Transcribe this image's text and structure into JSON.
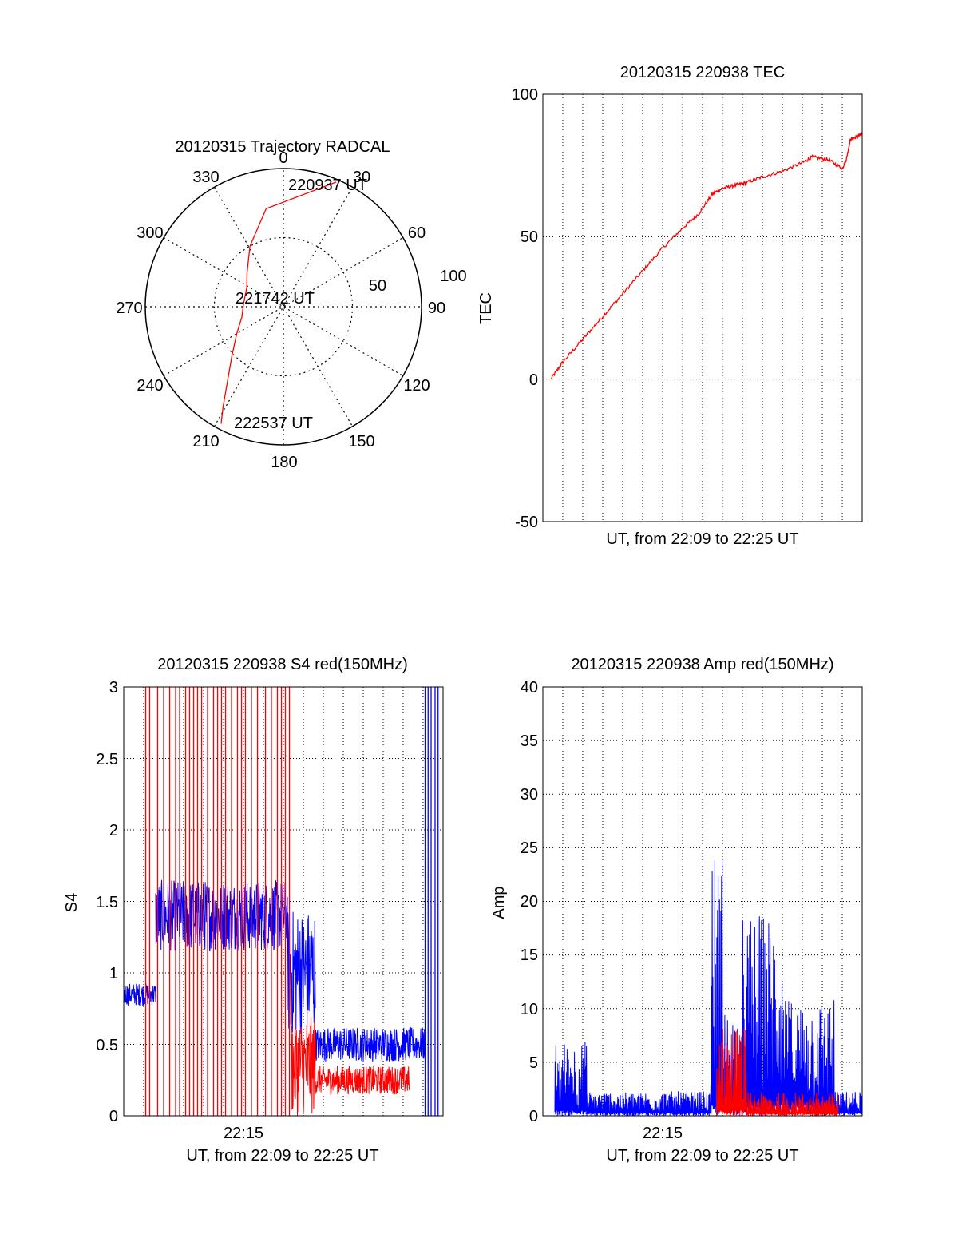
{
  "chart_data": [
    {
      "type": "polar",
      "title": "20120315 Trajectory RADCAL",
      "angle_labels": [
        "0",
        "30",
        "60",
        "90",
        "120",
        "150",
        "180",
        "210",
        "240",
        "270",
        "300",
        "330"
      ],
      "radius_labels": [
        "50",
        "100"
      ],
      "rlim": [
        0,
        100
      ],
      "trajectory": {
        "color": "#ff0000",
        "points": [
          [
            23,
            98
          ],
          [
            -10,
            72
          ],
          [
            -29,
            50
          ],
          [
            -47,
            36
          ],
          [
            -62,
            30
          ],
          [
            -87,
            29
          ],
          [
            -104,
            31
          ],
          [
            -120,
            39
          ],
          [
            -134,
            52
          ],
          [
            -149,
            85
          ],
          [
            -152,
            96
          ]
        ]
      },
      "annotations": [
        "220937 UT",
        "221742 UT",
        "222537 UT"
      ]
    },
    {
      "type": "line",
      "title": "20120315 220938 TEC",
      "xlabel": "UT, from 22:09 to 22:25 UT",
      "ylabel": "TEC",
      "ylim": [
        -50,
        100
      ],
      "yticks": [
        "100",
        "50",
        "0",
        "-50"
      ],
      "x_range_min": [
        0,
        16
      ],
      "grid": true,
      "series": [
        {
          "name": "TEC",
          "color": "#ff0000",
          "points": [
            [
              0.4,
              0
            ],
            [
              1.0,
              6
            ],
            [
              2.0,
              14
            ],
            [
              3.0,
              22
            ],
            [
              4.0,
              30
            ],
            [
              5.0,
              38
            ],
            [
              6.0,
              46
            ],
            [
              7.0,
              53
            ],
            [
              7.8,
              58
            ],
            [
              8.5,
              65
            ],
            [
              9.0,
              67
            ],
            [
              9.6,
              68
            ],
            [
              10.2,
              69
            ],
            [
              11.0,
              71
            ],
            [
              12.0,
              73
            ],
            [
              13.0,
              76
            ],
            [
              13.5,
              78
            ],
            [
              14.3,
              77
            ],
            [
              15.0,
              74
            ],
            [
              15.2,
              77
            ],
            [
              15.4,
              84
            ],
            [
              15.7,
              85
            ],
            [
              16.0,
              86
            ]
          ]
        }
      ]
    },
    {
      "type": "line",
      "title": "20120315 220938 S4 red(150MHz)",
      "xlabel": "UT, from 22:09 to 22:25 UT",
      "ylabel": "S4",
      "ylim": [
        0,
        3
      ],
      "yticks": [
        "3",
        "2.5",
        "2",
        "1.5",
        "1",
        "0.5",
        "0"
      ],
      "xtick_labels": [
        "22:15"
      ],
      "x_range_min": [
        0,
        16
      ],
      "grid": true,
      "series": [
        {
          "name": "S4 blue",
          "color": "#0000ff",
          "segments": [
            {
              "range": [
                0.0,
                1.6
              ],
              "base": 0.85,
              "noise": 0.08
            },
            {
              "range": [
                1.6,
                8.2
              ],
              "base": 1.4,
              "noise": 0.25
            },
            {
              "range": [
                8.2,
                9.6
              ],
              "base": 1.0,
              "noise": 0.45
            },
            {
              "range": [
                9.6,
                14.3
              ],
              "base": 0.5,
              "noise": 0.12
            },
            {
              "range": [
                14.3,
                15.1
              ],
              "base": 0.5,
              "noise": 0.12
            }
          ],
          "spikes": [
            [
              15.1,
              3
            ],
            [
              15.25,
              3
            ],
            [
              15.4,
              3
            ],
            [
              15.6,
              3
            ],
            [
              15.75,
              3
            ]
          ]
        },
        {
          "name": "S4 red",
          "color": "#ff0000",
          "segments": [
            {
              "range": [
                8.4,
                9.6
              ],
              "base": 0.35,
              "noise": 0.35
            },
            {
              "range": [
                9.6,
                14.3
              ],
              "base": 0.25,
              "noise": 0.1
            }
          ],
          "spikes": [
            [
              1.1,
              3
            ],
            [
              1.3,
              3
            ],
            [
              1.7,
              3
            ],
            [
              2.0,
              3
            ],
            [
              2.3,
              3
            ],
            [
              2.6,
              3
            ],
            [
              2.8,
              3
            ],
            [
              3.1,
              3
            ],
            [
              3.3,
              3
            ],
            [
              3.5,
              3
            ],
            [
              3.7,
              3
            ],
            [
              3.9,
              3
            ],
            [
              4.2,
              3
            ],
            [
              4.5,
              3
            ],
            [
              4.7,
              3
            ],
            [
              4.9,
              3
            ],
            [
              5.1,
              3
            ],
            [
              5.4,
              3
            ],
            [
              5.7,
              3
            ],
            [
              5.9,
              3
            ],
            [
              6.1,
              3
            ],
            [
              6.4,
              3
            ],
            [
              6.7,
              3
            ],
            [
              7.1,
              3
            ],
            [
              7.4,
              3
            ],
            [
              7.7,
              3
            ],
            [
              7.9,
              3
            ],
            [
              8.1,
              3
            ],
            [
              8.3,
              3
            ]
          ]
        }
      ]
    },
    {
      "type": "line",
      "title": "20120315 220938 Amp red(150MHz)",
      "xlabel": "UT, from 22:09 to 22:25 UT",
      "ylabel": "Amp",
      "ylim": [
        0,
        40
      ],
      "yticks": [
        "40",
        "35",
        "30",
        "25",
        "20",
        "15",
        "10",
        "5",
        "0"
      ],
      "xtick_labels": [
        "22:15"
      ],
      "x_range_min": [
        0,
        16
      ],
      "grid": true,
      "series": [
        {
          "name": "Amp blue",
          "color": "#0000ff",
          "segments": [
            {
              "range": [
                0.6,
                2.2
              ],
              "base": 0.5,
              "noise": 6.5
            },
            {
              "range": [
                2.2,
                8.4
              ],
              "base": 0.3,
              "noise": 2.0
            },
            {
              "range": [
                8.4,
                9.1
              ],
              "base": 1.0,
              "noise": 24
            },
            {
              "range": [
                9.1,
                10.0
              ],
              "base": 1.0,
              "noise": 9
            },
            {
              "range": [
                10.0,
                12.0
              ],
              "base": 1.0,
              "noise": 18
            },
            {
              "range": [
                12.0,
                14.6
              ],
              "base": 1.0,
              "noise": 10
            },
            {
              "range": [
                14.6,
                16.0
              ],
              "base": 0.3,
              "noise": 2.0
            }
          ]
        },
        {
          "name": "Amp red",
          "color": "#ff0000",
          "segments": [
            {
              "range": [
                8.7,
                10.2
              ],
              "base": 0.5,
              "noise": 8
            },
            {
              "range": [
                10.2,
                14.8
              ],
              "base": 0.2,
              "noise": 2
            }
          ]
        }
      ]
    }
  ]
}
